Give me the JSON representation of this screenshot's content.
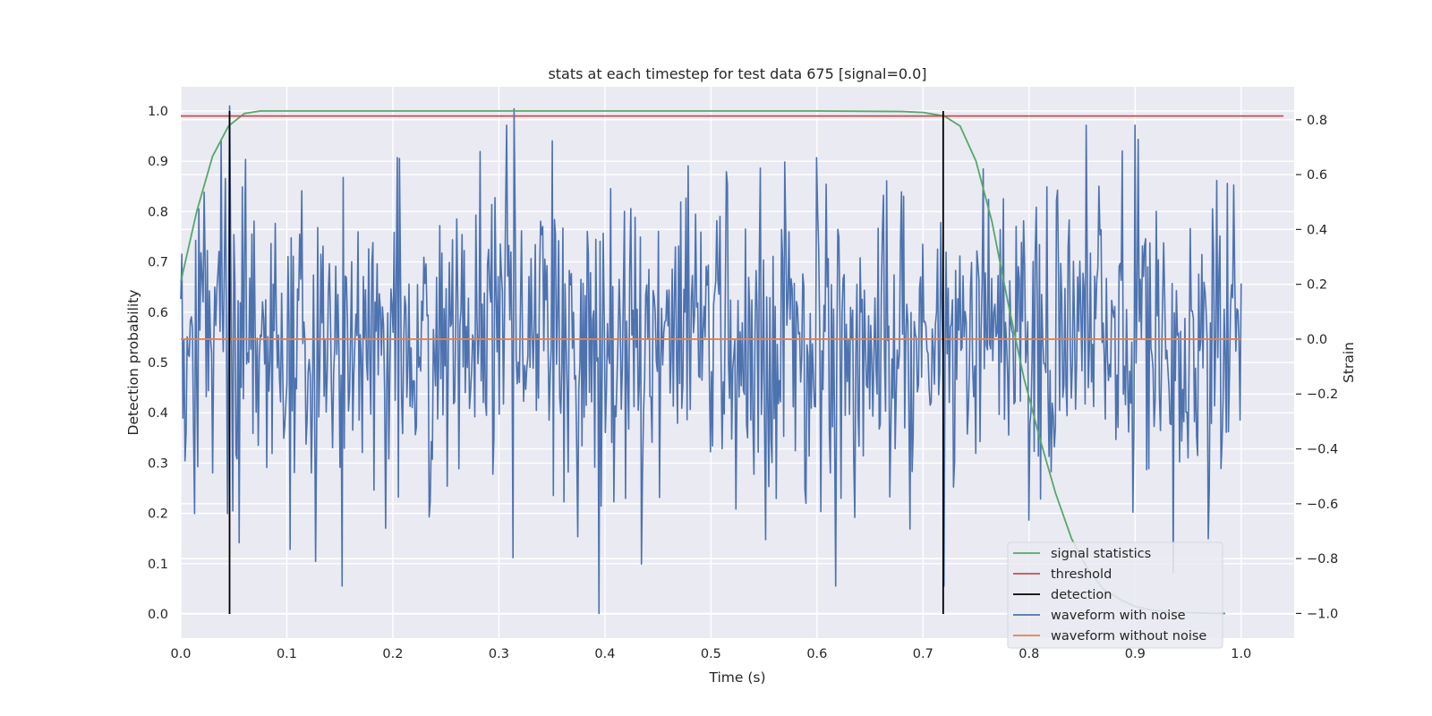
{
  "chart_data": {
    "type": "line",
    "title": "stats at each timestep for test data 675 [signal=0.0]",
    "xlabel": "Time (s)",
    "ylabel": "Detection probability",
    "y2label": "Strain",
    "xlim": [
      0.0,
      1.05
    ],
    "ylim": [
      -0.048,
      1.048
    ],
    "y2lim": [
      -1.09,
      0.92
    ],
    "x_ticks": [
      "0.0",
      "0.1",
      "0.2",
      "0.3",
      "0.4",
      "0.5",
      "0.6",
      "0.7",
      "0.8",
      "0.9",
      "1.0"
    ],
    "y_ticks": [
      "0.0",
      "0.1",
      "0.2",
      "0.3",
      "0.4",
      "0.5",
      "0.6",
      "0.7",
      "0.8",
      "0.9",
      "1.0"
    ],
    "y2_ticks": [
      "−1.0",
      "−0.8",
      "−0.6",
      "−0.4",
      "−0.2",
      "0.0",
      "0.2",
      "0.4",
      "0.6",
      "0.8"
    ],
    "grid": true,
    "legend_position": "lower right",
    "colors": {
      "background": "#eaeaf2",
      "grid": "#ffffff",
      "signal_statistics": "#55a868",
      "threshold": "#c44e52",
      "detection": "#000000",
      "waveform_with_noise": "#4c72b0",
      "waveform_without_noise": "#dd8452"
    },
    "series": [
      {
        "name": "signal statistics",
        "axis": "left",
        "x": [
          0.0,
          0.015,
          0.03,
          0.045,
          0.06,
          0.075,
          0.09,
          0.2,
          0.4,
          0.6,
          0.68,
          0.7,
          0.72,
          0.735,
          0.75,
          0.765,
          0.78,
          0.795,
          0.81,
          0.825,
          0.84,
          0.855,
          0.87,
          0.885,
          0.9,
          0.915,
          0.93,
          0.945,
          0.96,
          0.975,
          0.985
        ],
        "values": [
          0.66,
          0.8,
          0.91,
          0.97,
          0.995,
          1.0,
          1.0,
          1.0,
          1.0,
          1.0,
          0.999,
          0.997,
          0.99,
          0.97,
          0.9,
          0.78,
          0.62,
          0.47,
          0.35,
          0.24,
          0.15,
          0.09,
          0.05,
          0.03,
          0.015,
          0.008,
          0.005,
          0.003,
          0.002,
          0.001,
          0.001
        ]
      },
      {
        "name": "threshold",
        "axis": "left",
        "x": [
          0.0,
          1.04
        ],
        "values": [
          0.99,
          0.99
        ]
      },
      {
        "name": "detection",
        "axis": "left",
        "x": [
          0.046,
          0.719
        ],
        "y_range": [
          0.0,
          1.0
        ]
      },
      {
        "name": "waveform with noise",
        "axis": "right",
        "x_range": [
          0.0,
          1.0
        ],
        "n_points": 1000,
        "amplitude_sd": 0.28,
        "spikes": [
          {
            "x": 0.046,
            "value": 0.85
          },
          {
            "x": 0.314,
            "value": 0.84
          },
          {
            "x": 0.394,
            "value": -1.0
          },
          {
            "x": 0.127,
            "value": -0.81
          },
          {
            "x": 0.9,
            "value": 0.78
          },
          {
            "x": 0.936,
            "value": -0.85
          }
        ]
      },
      {
        "name": "waveform without noise",
        "axis": "right",
        "x": [
          0.0,
          1.0
        ],
        "values": [
          0.0,
          0.0
        ]
      }
    ]
  }
}
